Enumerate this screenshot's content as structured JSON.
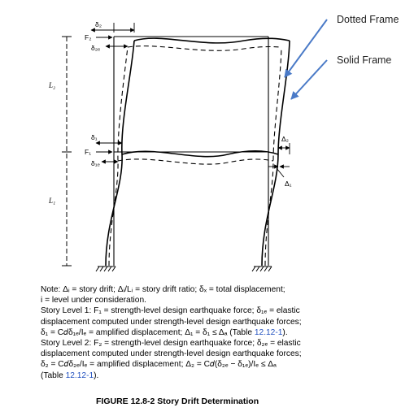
{
  "annotations": {
    "dotted_frame": "Dotted Frame",
    "solid_frame": "Solid Frame",
    "arrow_color": "#4a7ac7"
  },
  "labels": {
    "L2": "L₂",
    "L1": "L₁",
    "F2": "F₂",
    "F1": "F₁",
    "delta2": "δ₂",
    "delta2e": "δ₂ₑ",
    "delta1": "δ₁",
    "delta1e": "δ₁ₑ",
    "Delta2": "Δ₂",
    "Delta1": "Δ₁"
  },
  "note": {
    "line1": "Note: Δᵢ = story drift; Δᵢ/Lᵢ = story drift ratio; δₓ = total displacement;",
    "line2": "i = level under consideration.",
    "line3": "Story Level 1: F₁ = strength-level design earthquake force; δ₁ₑ = elastic",
    "line4": "displacement computed under strength-level design earthquake forces;",
    "line5a": "δ₁ = C𝑑δ₁ₑ/Iₑ = amplified displacement; Δ₁ = δ₁ ≤ Δₐ (Table ",
    "line5ref": "12.12-1",
    "line5b": ").",
    "line6": "Story Level 2: F₂ = strength-level design earthquake force; δ₂ₑ = elastic",
    "line7": "displacement computed under strength-level design earthquake forces;",
    "line8": "δ₂ = C𝑑δ₂ₑ/Iₑ = amplified displacement; Δ₂ = C𝑑(δ₂ₑ − δ₁ₑ)/Iₑ ≤ Δₐ",
    "line9a": "(Table ",
    "line9ref": "12.12-1",
    "line9b": ")."
  },
  "caption": "FIGURE 12.8-2 Story Drift Determination"
}
